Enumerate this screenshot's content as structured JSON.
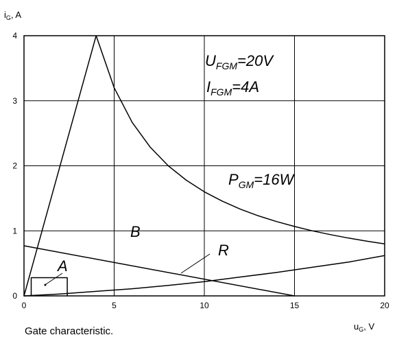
{
  "chart_data": {
    "type": "line",
    "xlabel": {
      "main": "u",
      "sub": "G",
      "unit": ", V"
    },
    "ylabel": {
      "main": "i",
      "sub": "G",
      "unit": ", A"
    },
    "xlim": [
      0,
      20
    ],
    "ylim": [
      0,
      4
    ],
    "x_ticks": [
      0,
      5,
      10,
      15,
      20
    ],
    "y_ticks": [
      0,
      1,
      2,
      3,
      4
    ],
    "grid": true,
    "series": [
      {
        "key": "peak-left",
        "points": [
          [
            0,
            0
          ],
          [
            4,
            4
          ]
        ]
      },
      {
        "key": "power-limit",
        "points": [
          [
            4,
            4
          ],
          [
            5,
            3.2
          ],
          [
            6,
            2.667
          ],
          [
            7,
            2.286
          ],
          [
            8,
            2.0
          ],
          [
            9,
            1.778
          ],
          [
            10,
            1.6
          ],
          [
            11,
            1.455
          ],
          [
            12,
            1.333
          ],
          [
            13,
            1.231
          ],
          [
            14,
            1.143
          ],
          [
            15,
            1.067
          ],
          [
            16,
            1.0
          ],
          [
            17,
            0.941
          ],
          [
            18,
            0.889
          ],
          [
            19,
            0.842
          ],
          [
            20,
            0.8
          ]
        ]
      },
      {
        "key": "load-line-b",
        "points": [
          [
            0,
            0.77
          ],
          [
            15,
            0
          ]
        ]
      },
      {
        "key": "curve-r",
        "points": [
          [
            0,
            0
          ],
          [
            2,
            0.03
          ],
          [
            4,
            0.07
          ],
          [
            6,
            0.11
          ],
          [
            8,
            0.16
          ],
          [
            10,
            0.22
          ],
          [
            12,
            0.29
          ],
          [
            14,
            0.36
          ],
          [
            16,
            0.44
          ],
          [
            18,
            0.52
          ],
          [
            20,
            0.62
          ]
        ]
      },
      {
        "key": "region-a",
        "points": [
          [
            0.4,
            0
          ],
          [
            0.4,
            0.28
          ],
          [
            2.4,
            0.28
          ],
          [
            2.4,
            0
          ]
        ]
      }
    ],
    "annotations": {
      "ufgm": {
        "main": "U",
        "sub": "FGM",
        "rest": "=20V"
      },
      "ifgm": {
        "main": "I",
        "sub": "FGM",
        "rest": "=4A"
      },
      "pgm": {
        "main": "P",
        "sub": "GM",
        "rest": "=16W"
      },
      "b": "B",
      "r": "R",
      "a": "A"
    }
  },
  "caption": "Gate characteristic."
}
